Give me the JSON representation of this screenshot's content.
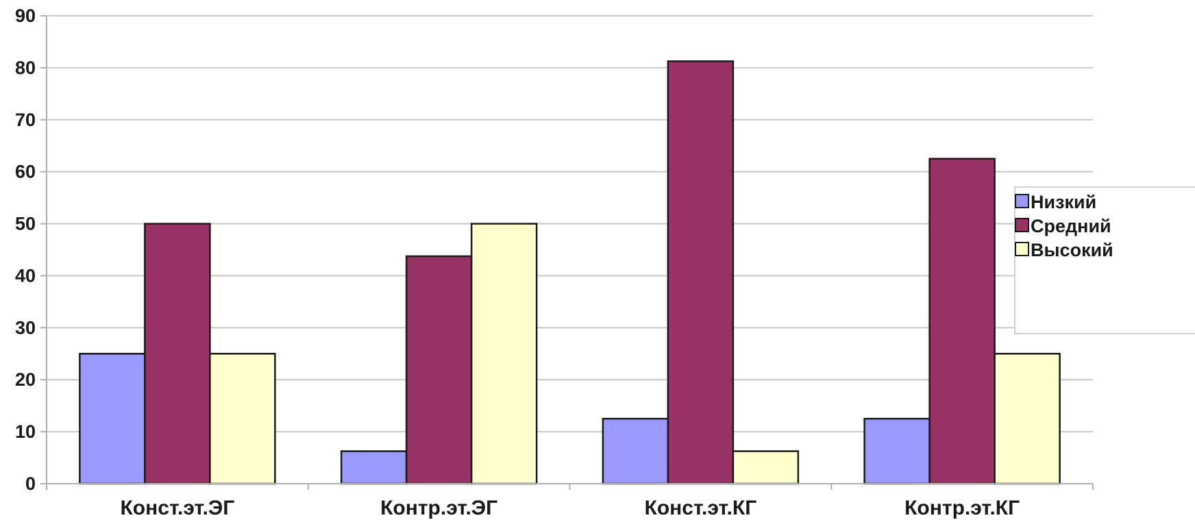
{
  "chart_data": {
    "type": "bar",
    "title": "",
    "xlabel": "",
    "ylabel": "",
    "categories": [
      "Конст.эт.ЭГ",
      "Контр.эт.ЭГ",
      "Конст.эт.КГ",
      "Контр.эт.КГ"
    ],
    "series": [
      {
        "name": "Низкий",
        "color": "#9999ff",
        "values": [
          25,
          6.25,
          12.5,
          12.5
        ]
      },
      {
        "name": "Средний",
        "color": "#993366",
        "values": [
          50,
          43.75,
          81.25,
          62.5
        ]
      },
      {
        "name": "Высокий",
        "color": "#ffffcc",
        "values": [
          25,
          50,
          6.25,
          25
        ]
      }
    ],
    "ylim": [
      0,
      90
    ],
    "yticks": [
      0,
      10,
      20,
      30,
      40,
      50,
      60,
      70,
      80,
      90
    ],
    "grid": true,
    "legend_position": "right"
  }
}
